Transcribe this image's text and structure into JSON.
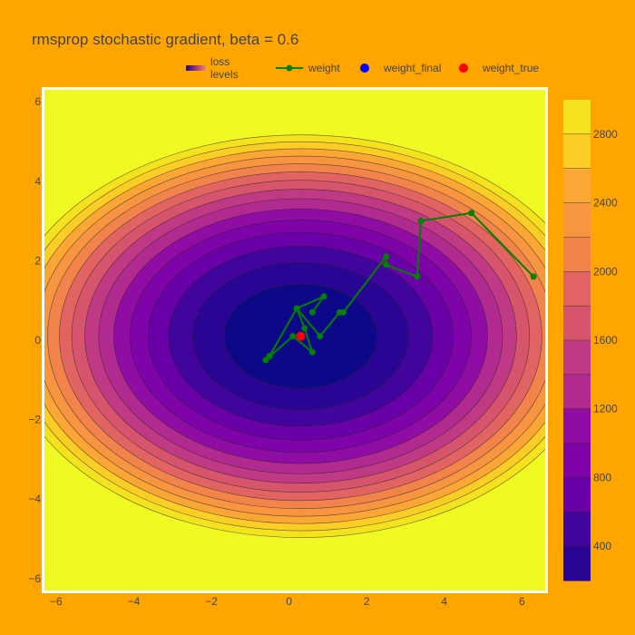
{
  "chart_data": {
    "type": "contour",
    "title": "rmsprop stochastic gradient, beta = 0.6",
    "legend": [
      {
        "label": "loss levels",
        "symbol": "colorscale"
      },
      {
        "label": "weight",
        "symbol": "line-marker",
        "color": "#008000"
      },
      {
        "label": "weight_final",
        "symbol": "marker",
        "color": "#0000ff"
      },
      {
        "label": "weight_true",
        "symbol": "marker",
        "color": "#ff0000"
      }
    ],
    "legend_position": "top",
    "xlim": [
      -6.3,
      6.6
    ],
    "ylim": [
      -6.3,
      6.3
    ],
    "xticks": [
      -6,
      -4,
      -2,
      0,
      2,
      4,
      6
    ],
    "yticks": [
      -6,
      -4,
      -2,
      0,
      2,
      4,
      6
    ],
    "contour_levels": [
      200,
      400,
      600,
      800,
      1000,
      1200,
      1400,
      1600,
      1800,
      2000,
      2200,
      2400,
      2600,
      2800,
      3000
    ],
    "contour_center": [
      0.3,
      0.1
    ],
    "contour_radii_x_per_sqrt_loss": 0.139,
    "contour_radii_y_per_sqrt_loss": 0.0925,
    "colorbar": {
      "ticks": [
        400,
        800,
        1200,
        1600,
        2000,
        2400,
        2800
      ],
      "range": [
        200,
        3000
      ],
      "colors": [
        "#0d0887",
        "#2a0593",
        "#41049d",
        "#5601a4",
        "#6a00a8",
        "#7e03a8",
        "#8f0da4",
        "#a21d9a",
        "#b12a90",
        "#bf3984",
        "#cc4778",
        "#d6556d",
        "#e16462",
        "#ea7457",
        "#f2844b",
        "#f89540",
        "#fca636",
        "#feb82c",
        "#fccd25",
        "#f5e21f",
        "#f0f921"
      ]
    },
    "weight": {
      "name": "weight",
      "x": [
        6.3,
        4.7,
        3.4,
        3.3,
        2.5,
        2.5,
        1.4,
        1.3,
        0.8,
        0.2,
        -0.5,
        -0.6,
        0.1,
        0.6,
        0.4,
        0.2,
        0.9,
        0.6
      ],
      "y": [
        1.6,
        3.2,
        3.0,
        1.6,
        1.9,
        2.1,
        0.7,
        0.7,
        0.1,
        0.8,
        -0.4,
        -0.5,
        0.1,
        -0.3,
        0.3,
        0.8,
        1.1,
        0.7
      ]
    },
    "weight_final": {
      "name": "weight_final",
      "x": [
        0.3
      ],
      "y": [
        0.1
      ]
    },
    "weight_true": {
      "name": "weight_true",
      "x": [
        0.3
      ],
      "y": [
        0.1
      ]
    }
  }
}
